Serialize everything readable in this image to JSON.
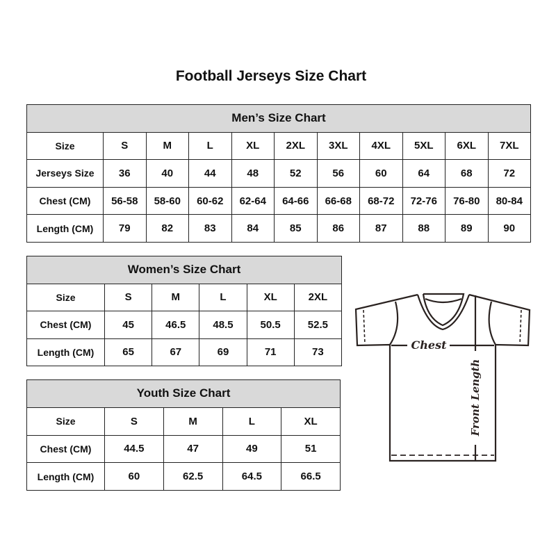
{
  "title": "Football Jerseys Size Chart",
  "men": {
    "header": "Men’s Size Chart",
    "rows": [
      {
        "label": "Size",
        "values": [
          "S",
          "M",
          "L",
          "XL",
          "2XL",
          "3XL",
          "4XL",
          "5XL",
          "6XL",
          "7XL"
        ]
      },
      {
        "label": "Jerseys Size",
        "values": [
          "36",
          "40",
          "44",
          "48",
          "52",
          "56",
          "60",
          "64",
          "68",
          "72"
        ]
      },
      {
        "label": "Chest (CM)",
        "values": [
          "56-58",
          "58-60",
          "60-62",
          "62-64",
          "64-66",
          "66-68",
          "68-72",
          "72-76",
          "76-80",
          "80-84"
        ]
      },
      {
        "label": "Length (CM)",
        "values": [
          "79",
          "82",
          "83",
          "84",
          "85",
          "86",
          "87",
          "88",
          "89",
          "90"
        ]
      }
    ]
  },
  "women": {
    "header": "Women’s Size Chart",
    "rows": [
      {
        "label": "Size",
        "values": [
          "S",
          "M",
          "L",
          "XL",
          "2XL"
        ]
      },
      {
        "label": "Chest (CM)",
        "values": [
          "45",
          "46.5",
          "48.5",
          "50.5",
          "52.5"
        ]
      },
      {
        "label": "Length (CM)",
        "values": [
          "65",
          "67",
          "69",
          "71",
          "73"
        ]
      }
    ]
  },
  "youth": {
    "header": "Youth Size Chart",
    "rows": [
      {
        "label": "Size",
        "values": [
          "S",
          "M",
          "L",
          "XL"
        ]
      },
      {
        "label": "Chest (CM)",
        "values": [
          "44.5",
          "47",
          "49",
          "51"
        ]
      },
      {
        "label": "Length (CM)",
        "values": [
          "60",
          "62.5",
          "64.5",
          "66.5"
        ]
      }
    ]
  },
  "diagram": {
    "chest_label": "Chest",
    "length_label": "Front Length"
  }
}
